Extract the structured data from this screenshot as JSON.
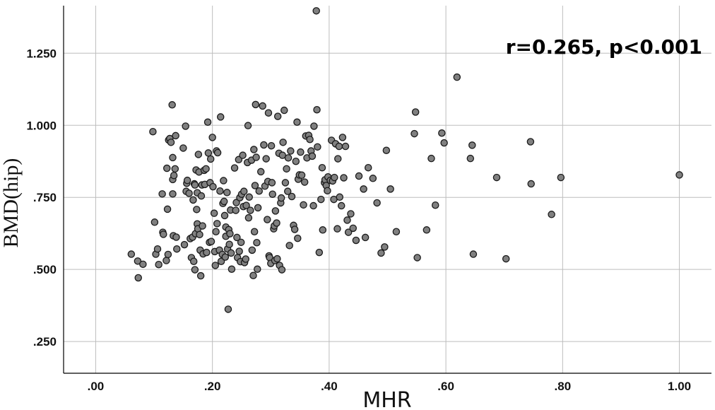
{
  "chart_data": {
    "type": "scatter",
    "xlabel": "MHR",
    "ylabel": "BMD(hip)",
    "annotation": "r=0.265, p<0.001",
    "xlim": [
      -0.055,
      1.055
    ],
    "ylim": [
      0.14,
      1.415
    ],
    "x_ticks": [
      {
        "value": 0.0,
        "label": ".00"
      },
      {
        "value": 0.2,
        "label": ".20"
      },
      {
        "value": 0.4,
        "label": ".40"
      },
      {
        "value": 0.6,
        "label": ".60"
      },
      {
        "value": 0.8,
        "label": ".80"
      },
      {
        "value": 1.0,
        "label": "1.00"
      }
    ],
    "y_ticks": [
      {
        "value": 0.25,
        "label": ".250"
      },
      {
        "value": 0.5,
        "label": ".500"
      },
      {
        "value": 0.75,
        "label": ".750"
      },
      {
        "value": 1.0,
        "label": "1.000"
      },
      {
        "value": 1.25,
        "label": "1.250"
      }
    ],
    "grid": true,
    "colors": {
      "point_fill": "#808080",
      "point_stroke": "#1a1a1a",
      "grid": "#bdbdbd",
      "axis": "#000000"
    },
    "points": [
      [
        0.061,
        0.553
      ],
      [
        0.072,
        0.529
      ],
      [
        0.073,
        0.471
      ],
      [
        0.081,
        0.518
      ],
      [
        0.098,
        0.978
      ],
      [
        0.101,
        0.664
      ],
      [
        0.103,
        0.553
      ],
      [
        0.106,
        0.571
      ],
      [
        0.108,
        0.517
      ],
      [
        0.114,
        0.762
      ],
      [
        0.115,
        0.629
      ],
      [
        0.116,
        0.622
      ],
      [
        0.121,
        0.531
      ],
      [
        0.122,
        0.851
      ],
      [
        0.123,
        0.709
      ],
      [
        0.124,
        0.552
      ],
      [
        0.125,
        0.949
      ],
      [
        0.127,
        0.954
      ],
      [
        0.129,
        0.941
      ],
      [
        0.131,
        1.071
      ],
      [
        0.132,
        0.812
      ],
      [
        0.132,
        0.762
      ],
      [
        0.132,
        0.888
      ],
      [
        0.133,
        0.617
      ],
      [
        0.134,
        0.826
      ],
      [
        0.136,
        0.849
      ],
      [
        0.137,
        0.964
      ],
      [
        0.138,
        0.612
      ],
      [
        0.139,
        0.571
      ],
      [
        0.15,
        0.921
      ],
      [
        0.152,
        0.586
      ],
      [
        0.154,
        0.997
      ],
      [
        0.155,
        0.771
      ],
      [
        0.156,
        0.799
      ],
      [
        0.157,
        0.809
      ],
      [
        0.16,
        0.764
      ],
      [
        0.162,
        0.607
      ],
      [
        0.164,
        0.541
      ],
      [
        0.166,
        0.612
      ],
      [
        0.167,
        0.741
      ],
      [
        0.168,
        0.528
      ],
      [
        0.169,
        0.797
      ],
      [
        0.17,
        0.499
      ],
      [
        0.17,
        0.793
      ],
      [
        0.171,
        0.624
      ],
      [
        0.172,
        0.845
      ],
      [
        0.173,
        0.708
      ],
      [
        0.174,
        0.766
      ],
      [
        0.174,
        0.658
      ],
      [
        0.175,
        0.641
      ],
      [
        0.176,
        0.899
      ],
      [
        0.177,
        0.838
      ],
      [
        0.178,
        0.621
      ],
      [
        0.179,
        0.567
      ],
      [
        0.18,
        0.478
      ],
      [
        0.181,
        0.755
      ],
      [
        0.182,
        0.793
      ],
      [
        0.183,
        0.651
      ],
      [
        0.184,
        0.554
      ],
      [
        0.186,
        0.844
      ],
      [
        0.187,
        0.795
      ],
      [
        0.189,
        0.849
      ],
      [
        0.19,
        0.559
      ],
      [
        0.192,
        1.011
      ],
      [
        0.193,
        0.904
      ],
      [
        0.195,
        0.594
      ],
      [
        0.196,
        0.801
      ],
      [
        0.197,
        0.883
      ],
      [
        0.198,
        0.597
      ],
      [
        0.2,
        0.958
      ],
      [
        0.201,
        0.787
      ],
      [
        0.203,
        0.695
      ],
      [
        0.204,
        0.562
      ],
      [
        0.205,
        0.514
      ],
      [
        0.206,
        0.631
      ],
      [
        0.207,
        0.911
      ],
      [
        0.208,
        0.659
      ],
      [
        0.209,
        0.905
      ],
      [
        0.212,
        0.567
      ],
      [
        0.213,
        0.772
      ],
      [
        0.214,
        1.029
      ],
      [
        0.215,
        0.528
      ],
      [
        0.217,
        0.552
      ],
      [
        0.218,
        0.729
      ],
      [
        0.219,
        0.808
      ],
      [
        0.22,
        0.736
      ],
      [
        0.221,
        0.687
      ],
      [
        0.222,
        0.543
      ],
      [
        0.223,
        0.647
      ],
      [
        0.223,
        0.615
      ],
      [
        0.225,
        0.767
      ],
      [
        0.226,
        0.571
      ],
      [
        0.227,
        0.362
      ],
      [
        0.228,
        0.638
      ],
      [
        0.229,
        0.587
      ],
      [
        0.23,
        0.624
      ],
      [
        0.231,
        0.706
      ],
      [
        0.232,
        0.557
      ],
      [
        0.233,
        0.501
      ],
      [
        0.238,
        0.852
      ],
      [
        0.24,
        0.705
      ],
      [
        0.241,
        0.732
      ],
      [
        0.242,
        0.611
      ],
      [
        0.243,
        0.541
      ],
      [
        0.245,
        0.881
      ],
      [
        0.246,
        0.563
      ],
      [
        0.247,
        0.749
      ],
      [
        0.248,
        0.527
      ],
      [
        0.249,
        0.594
      ],
      [
        0.25,
        0.761
      ],
      [
        0.252,
        0.896
      ],
      [
        0.253,
        0.718
      ],
      [
        0.254,
        0.771
      ],
      [
        0.255,
        0.524
      ],
      [
        0.257,
        0.536
      ],
      [
        0.258,
        0.722
      ],
      [
        0.26,
        0.871
      ],
      [
        0.261,
        0.999
      ],
      [
        0.262,
        0.679
      ],
      [
        0.263,
        0.751
      ],
      [
        0.265,
        0.705
      ],
      [
        0.267,
        0.879
      ],
      [
        0.268,
        0.567
      ],
      [
        0.27,
        0.479
      ],
      [
        0.271,
        0.916
      ],
      [
        0.272,
        0.631
      ],
      [
        0.273,
        0.791
      ],
      [
        0.274,
        1.072
      ],
      [
        0.275,
        0.889
      ],
      [
        0.276,
        0.593
      ],
      [
        0.277,
        0.501
      ],
      [
        0.278,
        0.714
      ],
      [
        0.28,
        0.772
      ],
      [
        0.283,
        0.839
      ],
      [
        0.286,
        1.067
      ],
      [
        0.288,
        0.932
      ],
      [
        0.29,
        0.789
      ],
      [
        0.292,
        0.884
      ],
      [
        0.294,
        0.673
      ],
      [
        0.295,
        0.805
      ],
      [
        0.296,
        1.043
      ],
      [
        0.297,
        0.547
      ],
      [
        0.298,
        0.541
      ],
      [
        0.3,
        0.521
      ],
      [
        0.301,
        0.929
      ],
      [
        0.302,
        0.801
      ],
      [
        0.303,
        0.761
      ],
      [
        0.305,
        0.641
      ],
      [
        0.306,
        0.651
      ],
      [
        0.307,
        0.531
      ],
      [
        0.308,
        0.703
      ],
      [
        0.31,
        0.661
      ],
      [
        0.311,
        0.537
      ],
      [
        0.312,
        1.031
      ],
      [
        0.314,
        0.903
      ],
      [
        0.315,
        0.514
      ],
      [
        0.317,
        0.731
      ],
      [
        0.318,
        0.748
      ],
      [
        0.319,
        0.499
      ],
      [
        0.32,
        0.896
      ],
      [
        0.321,
        0.941
      ],
      [
        0.323,
        1.052
      ],
      [
        0.325,
        0.801
      ],
      [
        0.327,
        0.849
      ],
      [
        0.329,
        0.771
      ],
      [
        0.33,
        0.887
      ],
      [
        0.332,
        0.583
      ],
      [
        0.334,
        0.911
      ],
      [
        0.336,
        0.753
      ],
      [
        0.339,
        0.653
      ],
      [
        0.341,
        0.639
      ],
      [
        0.343,
        0.875
      ],
      [
        0.345,
        1.011
      ],
      [
        0.346,
        0.608
      ],
      [
        0.347,
        0.813
      ],
      [
        0.349,
        0.828
      ],
      [
        0.351,
        0.907
      ],
      [
        0.353,
        0.827
      ],
      [
        0.356,
        0.724
      ],
      [
        0.358,
        0.803
      ],
      [
        0.36,
        0.963
      ],
      [
        0.362,
        0.887
      ],
      [
        0.365,
        0.965
      ],
      [
        0.367,
        0.951
      ],
      [
        0.369,
        0.911
      ],
      [
        0.371,
        0.893
      ],
      [
        0.373,
        0.721
      ],
      [
        0.374,
        0.997
      ],
      [
        0.378,
        1.397
      ],
      [
        0.379,
        1.054
      ],
      [
        0.38,
        0.925
      ],
      [
        0.383,
        0.559
      ],
      [
        0.386,
        0.743
      ],
      [
        0.388,
        0.853
      ],
      [
        0.389,
        0.637
      ],
      [
        0.392,
        0.801
      ],
      [
        0.393,
        0.811
      ],
      [
        0.395,
        0.791
      ],
      [
        0.397,
        0.773
      ],
      [
        0.398,
        0.821
      ],
      [
        0.402,
        0.809
      ],
      [
        0.404,
        0.948
      ],
      [
        0.406,
        0.807
      ],
      [
        0.408,
        0.743
      ],
      [
        0.409,
        0.819
      ],
      [
        0.411,
        0.936
      ],
      [
        0.414,
        0.641
      ],
      [
        0.415,
        0.884
      ],
      [
        0.417,
        0.927
      ],
      [
        0.418,
        0.751
      ],
      [
        0.421,
        0.721
      ],
      [
        0.423,
        0.958
      ],
      [
        0.425,
        0.818
      ],
      [
        0.428,
        0.927
      ],
      [
        0.431,
        0.671
      ],
      [
        0.433,
        0.629
      ],
      [
        0.437,
        0.693
      ],
      [
        0.441,
        0.643
      ],
      [
        0.446,
        0.601
      ],
      [
        0.451,
        0.824
      ],
      [
        0.459,
        0.779
      ],
      [
        0.462,
        0.611
      ],
      [
        0.467,
        0.853
      ],
      [
        0.475,
        0.816
      ],
      [
        0.482,
        0.731
      ],
      [
        0.489,
        0.557
      ],
      [
        0.495,
        0.578
      ],
      [
        0.498,
        0.913
      ],
      [
        0.505,
        0.779
      ],
      [
        0.515,
        0.631
      ],
      [
        0.546,
        0.971
      ],
      [
        0.548,
        1.046
      ],
      [
        0.551,
        0.541
      ],
      [
        0.567,
        0.637
      ],
      [
        0.575,
        0.885
      ],
      [
        0.582,
        0.723
      ],
      [
        0.593,
        0.973
      ],
      [
        0.597,
        0.939
      ],
      [
        0.619,
        1.167
      ],
      [
        0.642,
        0.885
      ],
      [
        0.645,
        0.931
      ],
      [
        0.647,
        0.553
      ],
      [
        0.687,
        0.819
      ],
      [
        0.703,
        0.537
      ],
      [
        0.745,
        0.943
      ],
      [
        0.746,
        0.797
      ],
      [
        0.781,
        0.691
      ],
      [
        0.797,
        0.819
      ],
      [
        1.0,
        0.828
      ]
    ]
  }
}
